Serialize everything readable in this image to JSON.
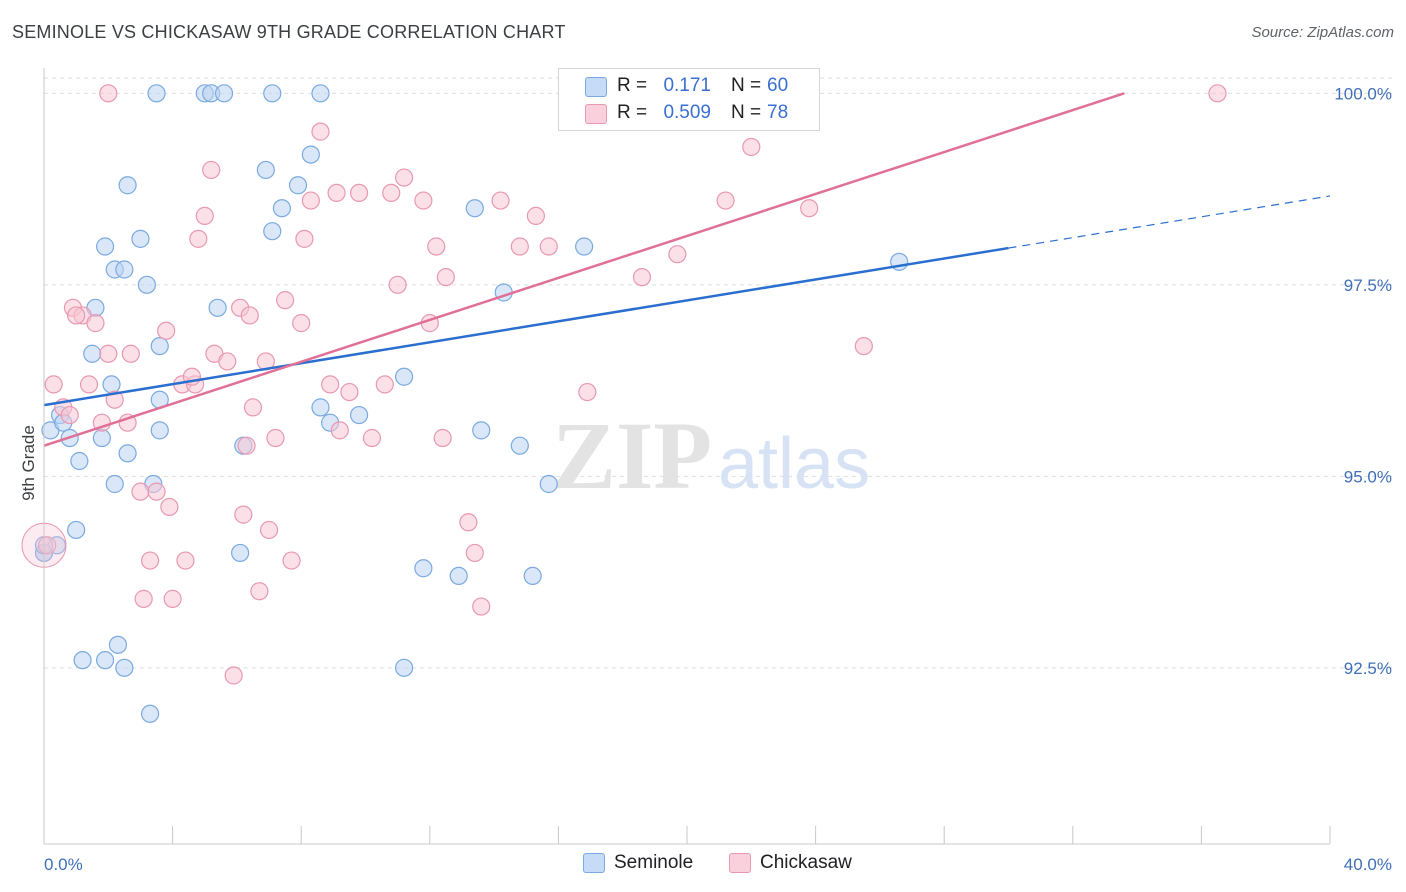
{
  "title": "SEMINOLE VS CHICKASAW 9TH GRADE CORRELATION CHART",
  "source": "Source: ZipAtlas.com",
  "watermark": {
    "zip": "ZIP",
    "atlas": "atlas"
  },
  "colors": {
    "seminole_fill": "#b9d3f3",
    "seminole_stroke": "#7aaae0",
    "seminole_line": "#2a6fd0",
    "chickasaw_fill": "#f7c6d4",
    "chickasaw_stroke": "#e898b2",
    "chickasaw_line": "#e07098",
    "grid": "#dddddd",
    "tick_text": "#3f6fb6"
  },
  "legend": {
    "rows": [
      {
        "r_label": "R =",
        "r_value": "0.171",
        "n_label": "N =",
        "n_value": "60"
      },
      {
        "r_label": "R =",
        "r_value": "0.509",
        "n_label": "N =",
        "n_value": "78"
      }
    ]
  },
  "bottom_legend": {
    "seminole": "Seminole",
    "chickasaw": "Chickasaw"
  },
  "chart_data": {
    "type": "scatter",
    "title": "SEMINOLE VS CHICKASAW 9TH GRADE CORRELATION CHART",
    "xlabel": "",
    "ylabel": "9th Grade",
    "xlim": [
      0,
      40
    ],
    "ylim": [
      90.2,
      100.2
    ],
    "x_tick_labels": [
      "0.0%",
      "40.0%"
    ],
    "y_ticks": [
      92.5,
      95.0,
      97.5,
      100.0
    ],
    "y_tick_labels": [
      "92.5%",
      "95.0%",
      "97.5%",
      "100.0%"
    ],
    "grid": true,
    "legend_position": "top-center",
    "series": [
      {
        "name": "Seminole",
        "R": 0.171,
        "N": 60,
        "trend": {
          "x": [
            0,
            30.0
          ],
          "y": [
            95.93,
            97.98
          ],
          "extrapolate_to_x": 40,
          "extrapolate_y": 98.66
        },
        "points": [
          [
            0.2,
            95.6
          ],
          [
            0.5,
            95.8
          ],
          [
            0.6,
            95.7
          ],
          [
            0.8,
            95.5
          ],
          [
            1.1,
            95.2
          ],
          [
            1.0,
            94.3
          ],
          [
            0.4,
            94.1
          ],
          [
            1.2,
            92.6
          ],
          [
            1.9,
            92.6
          ],
          [
            2.3,
            92.8
          ],
          [
            2.5,
            92.5
          ],
          [
            3.3,
            91.9
          ],
          [
            2.1,
            96.2
          ],
          [
            1.5,
            96.6
          ],
          [
            1.6,
            97.2
          ],
          [
            1.8,
            95.5
          ],
          [
            2.2,
            94.9
          ],
          [
            2.6,
            95.3
          ],
          [
            3.4,
            94.9
          ],
          [
            3.6,
            95.6
          ],
          [
            3.6,
            96.7
          ],
          [
            3.6,
            96.0
          ],
          [
            1.9,
            98.0
          ],
          [
            2.2,
            97.7
          ],
          [
            2.5,
            97.7
          ],
          [
            2.6,
            98.8
          ],
          [
            3.0,
            98.1
          ],
          [
            3.2,
            97.5
          ],
          [
            3.5,
            100.0
          ],
          [
            5.0,
            100.0
          ],
          [
            5.2,
            100.0
          ],
          [
            5.6,
            100.0
          ],
          [
            7.1,
            100.0
          ],
          [
            8.6,
            100.0
          ],
          [
            5.4,
            97.2
          ],
          [
            6.1,
            94.0
          ],
          [
            6.2,
            95.4
          ],
          [
            6.9,
            99.0
          ],
          [
            7.1,
            98.2
          ],
          [
            7.4,
            98.5
          ],
          [
            7.9,
            98.8
          ],
          [
            8.3,
            99.2
          ],
          [
            8.6,
            95.9
          ],
          [
            8.9,
            95.7
          ],
          [
            9.8,
            95.8
          ],
          [
            11.2,
            96.3
          ],
          [
            11.2,
            92.5
          ],
          [
            11.8,
            93.8
          ],
          [
            12.9,
            93.7
          ],
          [
            13.4,
            98.5
          ],
          [
            13.6,
            95.6
          ],
          [
            14.3,
            97.4
          ],
          [
            14.8,
            95.4
          ],
          [
            15.2,
            93.7
          ],
          [
            15.7,
            94.9
          ],
          [
            16.8,
            98.0
          ],
          [
            26.6,
            97.8
          ],
          [
            0.0,
            94.0
          ],
          [
            0.0,
            94.0
          ],
          [
            0.0,
            94.1
          ]
        ]
      },
      {
        "name": "Chickasaw",
        "R": 0.509,
        "N": 78,
        "trend": {
          "x": [
            0,
            33.6
          ],
          "y": [
            95.4,
            100.0
          ]
        },
        "points": [
          [
            0.3,
            96.2
          ],
          [
            0.6,
            95.9
          ],
          [
            0.8,
            95.8
          ],
          [
            0.9,
            97.2
          ],
          [
            1.2,
            97.1
          ],
          [
            1.4,
            96.2
          ],
          [
            1.6,
            97.0
          ],
          [
            1.8,
            95.7
          ],
          [
            2.0,
            96.6
          ],
          [
            2.2,
            96.0
          ],
          [
            2.6,
            95.7
          ],
          [
            2.7,
            96.6
          ],
          [
            3.0,
            94.8
          ],
          [
            3.1,
            93.4
          ],
          [
            3.3,
            93.9
          ],
          [
            3.5,
            94.8
          ],
          [
            3.9,
            94.6
          ],
          [
            4.0,
            93.4
          ],
          [
            4.3,
            96.2
          ],
          [
            4.4,
            93.9
          ],
          [
            4.7,
            96.2
          ],
          [
            4.8,
            98.1
          ],
          [
            5.0,
            98.4
          ],
          [
            5.2,
            99.0
          ],
          [
            5.3,
            96.6
          ],
          [
            5.7,
            96.5
          ],
          [
            5.9,
            92.4
          ],
          [
            6.1,
            97.2
          ],
          [
            6.2,
            94.5
          ],
          [
            6.4,
            97.1
          ],
          [
            6.5,
            95.9
          ],
          [
            6.7,
            93.5
          ],
          [
            6.9,
            96.5
          ],
          [
            7.0,
            94.3
          ],
          [
            7.2,
            95.5
          ],
          [
            7.5,
            97.3
          ],
          [
            7.7,
            93.9
          ],
          [
            8.0,
            97.0
          ],
          [
            8.1,
            98.1
          ],
          [
            8.3,
            98.6
          ],
          [
            8.6,
            99.5
          ],
          [
            8.9,
            96.2
          ],
          [
            9.1,
            98.7
          ],
          [
            9.2,
            95.6
          ],
          [
            9.5,
            96.1
          ],
          [
            9.8,
            98.7
          ],
          [
            10.2,
            95.5
          ],
          [
            10.8,
            98.7
          ],
          [
            11.0,
            97.5
          ],
          [
            11.2,
            98.9
          ],
          [
            11.8,
            98.6
          ],
          [
            12.0,
            97.0
          ],
          [
            12.2,
            98.0
          ],
          [
            12.5,
            97.6
          ],
          [
            13.2,
            94.4
          ],
          [
            13.4,
            94.0
          ],
          [
            13.6,
            93.3
          ],
          [
            14.2,
            98.6
          ],
          [
            14.8,
            98.0
          ],
          [
            15.3,
            98.4
          ],
          [
            15.7,
            98.0
          ],
          [
            16.5,
            100.0
          ],
          [
            16.9,
            96.1
          ],
          [
            18.6,
            97.6
          ],
          [
            19.7,
            97.9
          ],
          [
            21.2,
            98.6
          ],
          [
            23.8,
            98.5
          ],
          [
            25.5,
            96.7
          ],
          [
            36.5,
            100.0
          ],
          [
            2.0,
            100.0
          ],
          [
            0.1,
            94.1
          ],
          [
            1.0,
            97.1
          ],
          [
            3.8,
            96.9
          ],
          [
            4.6,
            96.3
          ],
          [
            6.3,
            95.4
          ],
          [
            10.6,
            96.2
          ],
          [
            12.4,
            95.5
          ],
          [
            22.0,
            99.3
          ]
        ]
      }
    ]
  }
}
